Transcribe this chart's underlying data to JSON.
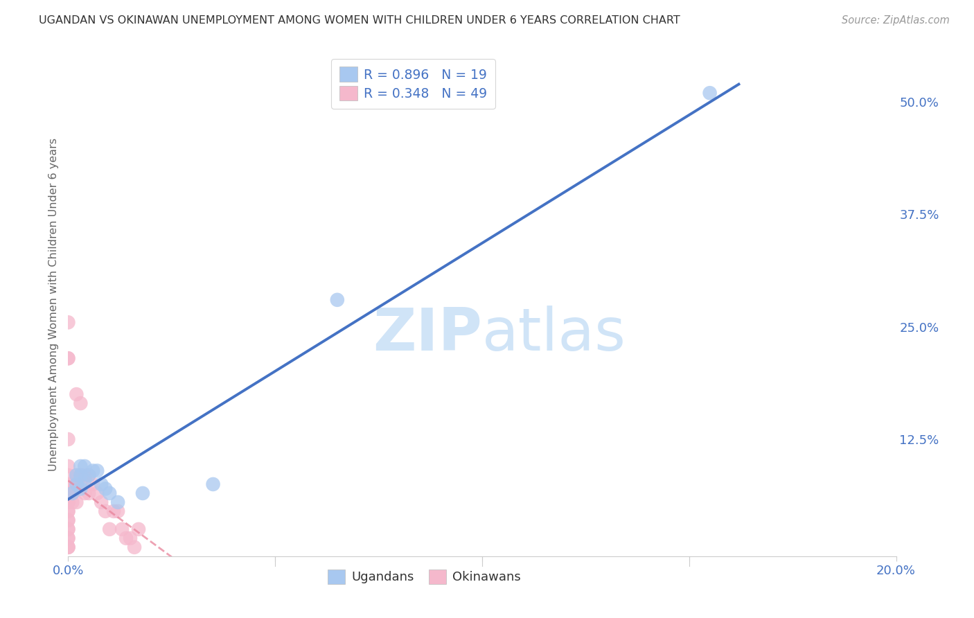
{
  "title": "UGANDAN VS OKINAWAN UNEMPLOYMENT AMONG WOMEN WITH CHILDREN UNDER 6 YEARS CORRELATION CHART",
  "source": "Source: ZipAtlas.com",
  "ylabel": "Unemployment Among Women with Children Under 6 years",
  "xlim": [
    0.0,
    0.2
  ],
  "ylim": [
    -0.005,
    0.555
  ],
  "x_ticks": [
    0.0,
    0.05,
    0.1,
    0.15,
    0.2
  ],
  "x_tick_labels": [
    "0.0%",
    "",
    "",
    "",
    "20.0%"
  ],
  "y_ticks_right": [
    0.0,
    0.125,
    0.25,
    0.375,
    0.5
  ],
  "y_tick_labels_right": [
    "",
    "12.5%",
    "25.0%",
    "37.5%",
    "50.0%"
  ],
  "ugandan_color": "#a8c8f0",
  "okinawan_color": "#f5b8cc",
  "ugandan_line_color": "#4472c4",
  "okinawan_line_color": "#e8839a",
  "ugandan_R": 0.896,
  "ugandan_N": 19,
  "okinawan_R": 0.348,
  "okinawan_N": 49,
  "background_color": "#ffffff",
  "grid_color": "#cccccc",
  "title_color": "#333333",
  "ugandan_points": [
    [
      0.001,
      0.065
    ],
    [
      0.002,
      0.075
    ],
    [
      0.002,
      0.085
    ],
    [
      0.003,
      0.07
    ],
    [
      0.003,
      0.085
    ],
    [
      0.003,
      0.095
    ],
    [
      0.004,
      0.08
    ],
    [
      0.004,
      0.095
    ],
    [
      0.005,
      0.085
    ],
    [
      0.006,
      0.09
    ],
    [
      0.007,
      0.09
    ],
    [
      0.008,
      0.075
    ],
    [
      0.009,
      0.07
    ],
    [
      0.01,
      0.065
    ],
    [
      0.012,
      0.055
    ],
    [
      0.018,
      0.065
    ],
    [
      0.035,
      0.075
    ],
    [
      0.065,
      0.28
    ],
    [
      0.155,
      0.51
    ]
  ],
  "okinawan_points": [
    [
      0.0,
      0.255
    ],
    [
      0.0,
      0.215
    ],
    [
      0.0,
      0.215
    ],
    [
      0.0,
      0.125
    ],
    [
      0.0,
      0.095
    ],
    [
      0.0,
      0.085
    ],
    [
      0.0,
      0.075
    ],
    [
      0.0,
      0.065
    ],
    [
      0.0,
      0.065
    ],
    [
      0.0,
      0.065
    ],
    [
      0.0,
      0.055
    ],
    [
      0.0,
      0.055
    ],
    [
      0.0,
      0.045
    ],
    [
      0.0,
      0.045
    ],
    [
      0.0,
      0.035
    ],
    [
      0.0,
      0.035
    ],
    [
      0.0,
      0.025
    ],
    [
      0.0,
      0.025
    ],
    [
      0.0,
      0.015
    ],
    [
      0.0,
      0.015
    ],
    [
      0.0,
      0.005
    ],
    [
      0.0,
      0.005
    ],
    [
      0.0,
      0.005
    ],
    [
      0.001,
      0.075
    ],
    [
      0.001,
      0.065
    ],
    [
      0.001,
      0.055
    ],
    [
      0.002,
      0.175
    ],
    [
      0.002,
      0.085
    ],
    [
      0.002,
      0.075
    ],
    [
      0.002,
      0.055
    ],
    [
      0.003,
      0.165
    ],
    [
      0.003,
      0.085
    ],
    [
      0.003,
      0.075
    ],
    [
      0.004,
      0.085
    ],
    [
      0.004,
      0.065
    ],
    [
      0.005,
      0.085
    ],
    [
      0.005,
      0.065
    ],
    [
      0.006,
      0.075
    ],
    [
      0.007,
      0.065
    ],
    [
      0.008,
      0.055
    ],
    [
      0.009,
      0.045
    ],
    [
      0.01,
      0.025
    ],
    [
      0.011,
      0.045
    ],
    [
      0.012,
      0.045
    ],
    [
      0.013,
      0.025
    ],
    [
      0.014,
      0.015
    ],
    [
      0.015,
      0.015
    ],
    [
      0.016,
      0.005
    ],
    [
      0.017,
      0.025
    ]
  ],
  "watermark_zip": "ZIP",
  "watermark_atlas": "atlas",
  "watermark_color": "#d0e4f7"
}
